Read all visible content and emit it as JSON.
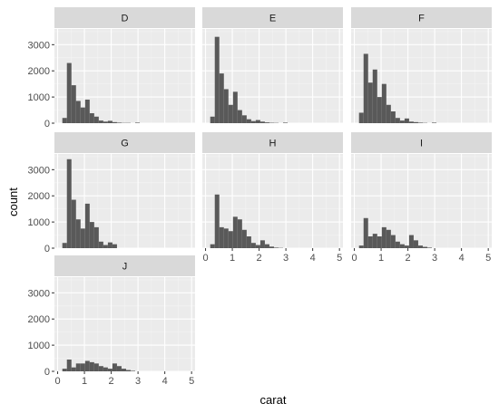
{
  "chart_data": {
    "type": "bar",
    "subtype": "faceted-histogram",
    "xlabel": "carat",
    "ylabel": "count",
    "xlim": [
      -0.12,
      5.13
    ],
    "ylim": [
      0,
      3600
    ],
    "x_ticks": [
      0,
      1,
      2,
      3,
      4,
      5
    ],
    "y_ticks": [
      0,
      1000,
      2000,
      3000
    ],
    "bin_width": 0.17,
    "facet_layout": "3x3 wrap",
    "grid": true,
    "colors": {
      "bar": "#595959",
      "panel_bg": "#ebebeb",
      "strip_bg": "#d9d9d9",
      "grid_major": "#ffffff",
      "grid_minor": "#f4f4f4"
    },
    "facets": [
      {
        "label": "D",
        "bins": [
          {
            "x": 0.26,
            "y": 200
          },
          {
            "x": 0.43,
            "y": 2300
          },
          {
            "x": 0.6,
            "y": 1450
          },
          {
            "x": 0.77,
            "y": 850
          },
          {
            "x": 0.94,
            "y": 600
          },
          {
            "x": 1.11,
            "y": 900
          },
          {
            "x": 1.28,
            "y": 380
          },
          {
            "x": 1.45,
            "y": 250
          },
          {
            "x": 1.62,
            "y": 100
          },
          {
            "x": 1.79,
            "y": 60
          },
          {
            "x": 1.96,
            "y": 90
          },
          {
            "x": 2.13,
            "y": 40
          },
          {
            "x": 2.3,
            "y": 20
          },
          {
            "x": 2.47,
            "y": 10
          },
          {
            "x": 2.64,
            "y": 10
          },
          {
            "x": 2.98,
            "y": 20
          }
        ]
      },
      {
        "label": "E",
        "bins": [
          {
            "x": 0.26,
            "y": 250
          },
          {
            "x": 0.43,
            "y": 3300
          },
          {
            "x": 0.6,
            "y": 1900
          },
          {
            "x": 0.77,
            "y": 1300
          },
          {
            "x": 0.94,
            "y": 700
          },
          {
            "x": 1.11,
            "y": 1200
          },
          {
            "x": 1.28,
            "y": 500
          },
          {
            "x": 1.45,
            "y": 300
          },
          {
            "x": 1.62,
            "y": 150
          },
          {
            "x": 1.79,
            "y": 80
          },
          {
            "x": 1.96,
            "y": 120
          },
          {
            "x": 2.13,
            "y": 60
          },
          {
            "x": 2.3,
            "y": 30
          },
          {
            "x": 2.47,
            "y": 15
          },
          {
            "x": 2.64,
            "y": 10
          },
          {
            "x": 2.98,
            "y": 20
          }
        ]
      },
      {
        "label": "F",
        "bins": [
          {
            "x": 0.26,
            "y": 400
          },
          {
            "x": 0.43,
            "y": 2650
          },
          {
            "x": 0.6,
            "y": 1550
          },
          {
            "x": 0.77,
            "y": 2050
          },
          {
            "x": 0.94,
            "y": 1000
          },
          {
            "x": 1.11,
            "y": 1500
          },
          {
            "x": 1.28,
            "y": 700
          },
          {
            "x": 1.45,
            "y": 450
          },
          {
            "x": 1.62,
            "y": 200
          },
          {
            "x": 1.79,
            "y": 100
          },
          {
            "x": 1.96,
            "y": 180
          },
          {
            "x": 2.13,
            "y": 60
          },
          {
            "x": 2.3,
            "y": 40
          },
          {
            "x": 2.47,
            "y": 20
          },
          {
            "x": 2.64,
            "y": 10
          },
          {
            "x": 2.98,
            "y": 20
          }
        ]
      },
      {
        "label": "G",
        "bins": [
          {
            "x": 0.26,
            "y": 200
          },
          {
            "x": 0.43,
            "y": 3400
          },
          {
            "x": 0.6,
            "y": 1850
          },
          {
            "x": 0.77,
            "y": 1100
          },
          {
            "x": 0.94,
            "y": 750
          },
          {
            "x": 1.11,
            "y": 1700
          },
          {
            "x": 1.28,
            "y": 1000
          },
          {
            "x": 1.45,
            "y": 800
          },
          {
            "x": 1.62,
            "y": 250
          },
          {
            "x": 1.79,
            "y": 120
          },
          {
            "x": 1.96,
            "y": 220
          },
          {
            "x": 2.13,
            "y": 150
          }
        ]
      },
      {
        "label": "H",
        "bins": [
          {
            "x": 0.26,
            "y": 150
          },
          {
            "x": 0.43,
            "y": 2050
          },
          {
            "x": 0.6,
            "y": 800
          },
          {
            "x": 0.77,
            "y": 750
          },
          {
            "x": 0.94,
            "y": 650
          },
          {
            "x": 1.11,
            "y": 1200
          },
          {
            "x": 1.28,
            "y": 1100
          },
          {
            "x": 1.45,
            "y": 700
          },
          {
            "x": 1.62,
            "y": 450
          },
          {
            "x": 1.79,
            "y": 200
          },
          {
            "x": 1.96,
            "y": 120
          },
          {
            "x": 2.13,
            "y": 300
          },
          {
            "x": 2.3,
            "y": 150
          },
          {
            "x": 2.47,
            "y": 60
          },
          {
            "x": 2.64,
            "y": 20
          },
          {
            "x": 2.81,
            "y": 10
          }
        ]
      },
      {
        "label": "I",
        "bins": [
          {
            "x": 0.26,
            "y": 100
          },
          {
            "x": 0.43,
            "y": 1150
          },
          {
            "x": 0.6,
            "y": 450
          },
          {
            "x": 0.77,
            "y": 550
          },
          {
            "x": 0.94,
            "y": 450
          },
          {
            "x": 1.11,
            "y": 800
          },
          {
            "x": 1.28,
            "y": 700
          },
          {
            "x": 1.45,
            "y": 500
          },
          {
            "x": 1.62,
            "y": 250
          },
          {
            "x": 1.79,
            "y": 150
          },
          {
            "x": 1.96,
            "y": 100
          },
          {
            "x": 2.13,
            "y": 500
          },
          {
            "x": 2.3,
            "y": 300
          },
          {
            "x": 2.47,
            "y": 100
          },
          {
            "x": 2.64,
            "y": 50
          },
          {
            "x": 2.81,
            "y": 20
          }
        ]
      },
      {
        "label": "J",
        "bins": [
          {
            "x": 0.26,
            "y": 100
          },
          {
            "x": 0.43,
            "y": 450
          },
          {
            "x": 0.6,
            "y": 150
          },
          {
            "x": 0.77,
            "y": 300
          },
          {
            "x": 0.94,
            "y": 300
          },
          {
            "x": 1.11,
            "y": 400
          },
          {
            "x": 1.28,
            "y": 350
          },
          {
            "x": 1.45,
            "y": 300
          },
          {
            "x": 1.62,
            "y": 200
          },
          {
            "x": 1.79,
            "y": 150
          },
          {
            "x": 1.96,
            "y": 100
          },
          {
            "x": 2.13,
            "y": 300
          },
          {
            "x": 2.3,
            "y": 200
          },
          {
            "x": 2.47,
            "y": 100
          },
          {
            "x": 2.64,
            "y": 50
          },
          {
            "x": 2.81,
            "y": 20
          }
        ]
      }
    ]
  }
}
